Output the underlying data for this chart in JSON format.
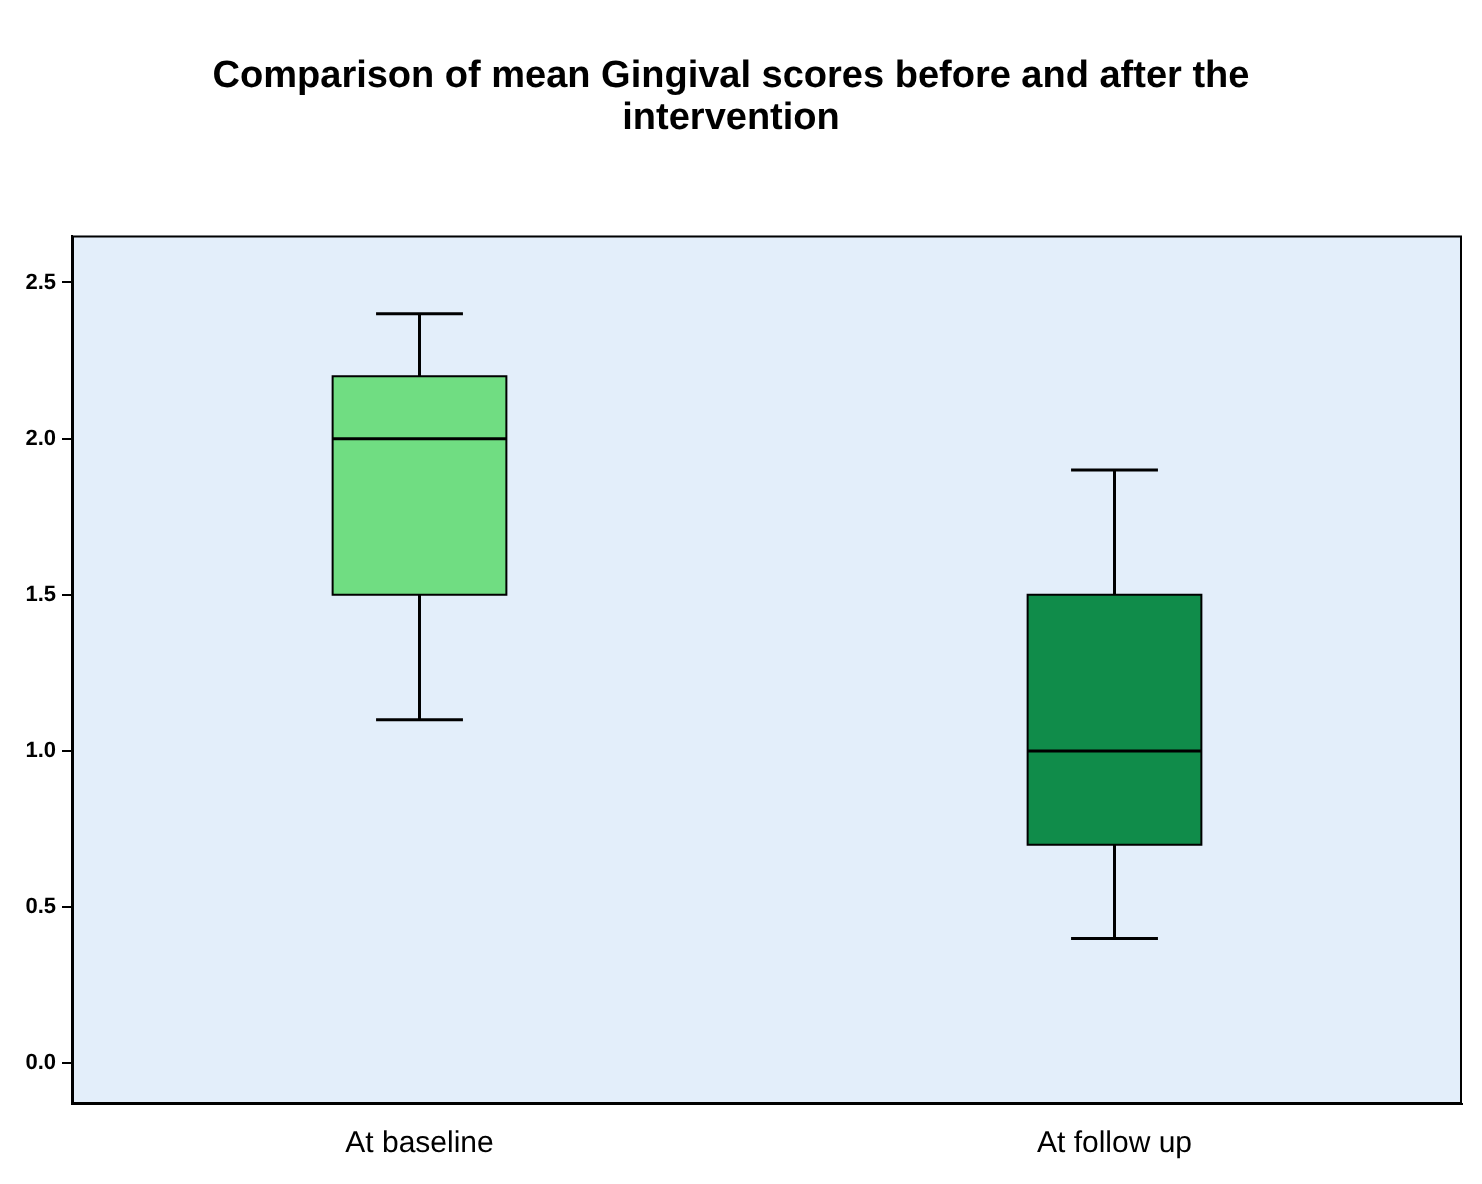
{
  "chart_data": {
    "type": "box",
    "title": "Comparison of mean Gingival scores before and after the intervention",
    "categories": [
      "At baseline",
      "At follow up"
    ],
    "boxes": [
      {
        "low": 1.1,
        "q1": 1.5,
        "median": 2.0,
        "q3": 2.2,
        "high": 2.4
      },
      {
        "low": 0.4,
        "q1": 0.7,
        "median": 1.0,
        "q3": 1.5,
        "high": 1.9
      }
    ],
    "colors": [
      "#70dd82",
      "#108c4a"
    ],
    "ylim": [
      -0.13,
      2.65
    ],
    "yticks": [
      {
        "value": 0,
        "label": "0.0"
      },
      {
        "value": 0.5,
        "label": "0.5"
      },
      {
        "value": 1,
        "label": "1.0"
      },
      {
        "value": 1.5,
        "label": "1.5"
      },
      {
        "value": 2,
        "label": "2.0"
      },
      {
        "value": 2.5,
        "label": "2.5"
      }
    ]
  }
}
